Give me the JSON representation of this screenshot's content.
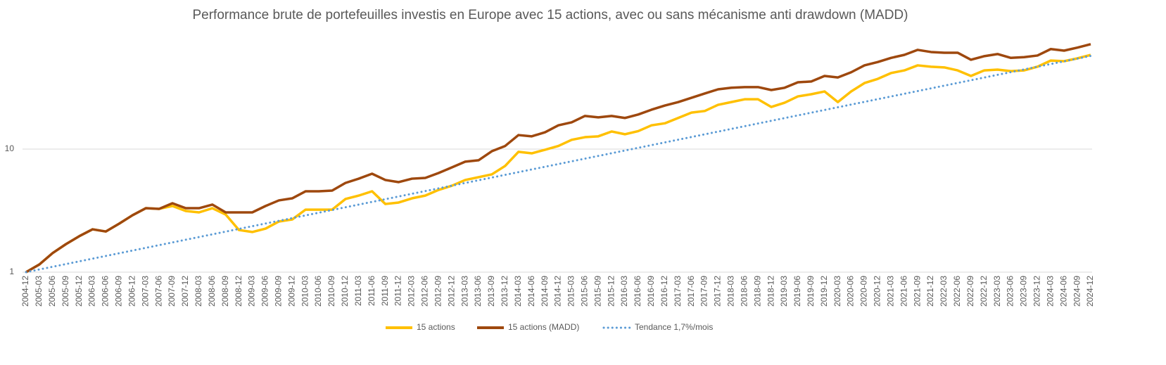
{
  "chart_data": {
    "type": "line",
    "title": "Performance brute de portefeuilles investis en Europe avec 15 actions, avec ou sans mécanisme anti drawdown (MADD)",
    "yscale": "log",
    "ylim": [
      1,
      100
    ],
    "yticks": [
      1,
      10
    ],
    "grid": true,
    "legend": "bottom",
    "categories": [
      "2004-12",
      "2005-03",
      "2005-06",
      "2005-09",
      "2005-12",
      "2006-03",
      "2006-06",
      "2006-09",
      "2006-12",
      "2007-03",
      "2007-06",
      "2007-09",
      "2007-12",
      "2008-03",
      "2008-06",
      "2008-09",
      "2008-12",
      "2009-03",
      "2009-06",
      "2009-09",
      "2009-12",
      "2010-03",
      "2010-06",
      "2010-09",
      "2010-12",
      "2011-03",
      "2011-06",
      "2011-09",
      "2011-12",
      "2012-03",
      "2012-06",
      "2012-09",
      "2012-12",
      "2013-03",
      "2013-06",
      "2013-09",
      "2013-12",
      "2014-03",
      "2014-06",
      "2014-09",
      "2014-12",
      "2015-03",
      "2015-06",
      "2015-09",
      "2015-12",
      "2016-03",
      "2016-06",
      "2016-09",
      "2016-12",
      "2017-03",
      "2017-06",
      "2017-09",
      "2017-12",
      "2018-03",
      "2018-06",
      "2018-09",
      "2018-12",
      "2019-03",
      "2019-06",
      "2019-09",
      "2019-12",
      "2020-03",
      "2020-06",
      "2020-09",
      "2020-12",
      "2021-03",
      "2021-06",
      "2021-09",
      "2021-12",
      "2022-03",
      "2022-06",
      "2022-09",
      "2022-12",
      "2023-03",
      "2023-06",
      "2023-09",
      "2023-12",
      "2024-03",
      "2024-06",
      "2024-09",
      "2024-12"
    ],
    "series": [
      {
        "name": "15 actions",
        "color": "#ffc000",
        "line_style": "solid",
        "values": [
          1,
          1.155,
          1.43,
          1.69,
          1.96,
          2.23,
          2.14,
          2.48,
          2.9,
          3.31,
          3.27,
          3.45,
          3.14,
          3.06,
          3.31,
          2.94,
          2.2,
          2.12,
          2.26,
          2.58,
          2.68,
          3.22,
          3.22,
          3.22,
          3.93,
          4.19,
          4.54,
          3.58,
          3.68,
          3.98,
          4.19,
          4.66,
          5.04,
          5.61,
          5.91,
          6.23,
          7.3,
          9.5,
          9.24,
          9.87,
          10.6,
          11.9,
          12.5,
          12.7,
          13.9,
          13.2,
          14,
          15.6,
          16.2,
          17.9,
          19.8,
          20.4,
          22.9,
          24.1,
          25.4,
          25.4,
          22,
          23.8,
          26.8,
          27.9,
          29.4,
          24.1,
          29.4,
          34.4,
          37.2,
          41.5,
          43.6,
          47.9,
          46.7,
          46.1,
          43.6,
          39.3,
          43.6,
          44.2,
          43,
          43.6,
          46.7,
          52.4,
          51.8,
          54.6,
          58.3
        ]
      },
      {
        "name": "15 actions (MADD)",
        "color": "#9e480e",
        "line_style": "solid",
        "values": [
          1,
          1.155,
          1.43,
          1.69,
          1.96,
          2.23,
          2.14,
          2.48,
          2.9,
          3.31,
          3.27,
          3.63,
          3.31,
          3.31,
          3.54,
          3.06,
          3.06,
          3.06,
          3.45,
          3.83,
          3.98,
          4.54,
          4.54,
          4.6,
          5.31,
          5.75,
          6.31,
          5.61,
          5.39,
          5.75,
          5.83,
          6.39,
          7.1,
          7.9,
          8.11,
          9.61,
          10.6,
          13,
          12.7,
          13.7,
          15.6,
          16.5,
          18.6,
          18.1,
          18.6,
          17.9,
          19.1,
          20.9,
          22.6,
          24.1,
          26.1,
          28.3,
          30.6,
          31.5,
          31.9,
          31.9,
          30.2,
          31.5,
          34.9,
          35.4,
          39.3,
          38.2,
          42.1,
          47.9,
          51,
          55.1,
          58.3,
          64,
          61.5,
          60.7,
          60.7,
          53.2,
          56.9,
          59.2,
          55.1,
          55.9,
          57.6,
          65,
          63.1,
          66.8,
          71.2
        ]
      },
      {
        "name": "Tendance 1,7%/mois",
        "color": "#5b9bd5",
        "line_style": "dotted",
        "values": [
          1,
          1.0519,
          1.1064,
          1.1638,
          1.2242,
          1.2877,
          1.3545,
          1.4248,
          1.4987,
          1.5764,
          1.6582,
          1.7442,
          1.8347,
          1.9299,
          2.03,
          2.1353,
          2.2461,
          2.3626,
          2.4851,
          2.614,
          2.7496,
          2.8922,
          3.0423,
          3.2001,
          3.3661,
          3.5407,
          3.7244,
          3.9176,
          4.1208,
          4.3346,
          4.5594,
          4.796,
          5.0448,
          5.3064,
          5.5817,
          5.8713,
          6.1759,
          6.4963,
          6.8333,
          7.1878,
          7.5606,
          7.9528,
          8.3654,
          8.7994,
          9.2558,
          9.736,
          10.241,
          10.772,
          11.331,
          11.919,
          12.537,
          13.188,
          13.872,
          14.591,
          15.348,
          16.145,
          16.982,
          17.863,
          18.79,
          19.765,
          20.79,
          21.869,
          23.003,
          24.197,
          25.452,
          26.772,
          28.161,
          29.622,
          31.159,
          32.775,
          34.476,
          36.264,
          38.146,
          40.125,
          42.206,
          44.396,
          46.699,
          49.122,
          51.67,
          54.351,
          57.17
        ]
      }
    ]
  }
}
